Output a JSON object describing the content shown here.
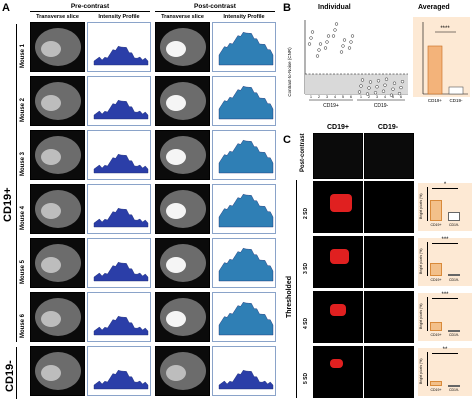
{
  "panelA": {
    "letter": "A",
    "pre_contrast": "Pre-contrast",
    "post_contrast": "Post-contrast",
    "transverse_slice": "Transverse slice",
    "intensity_profile": "Intensity Profile",
    "rows": [
      "Mouse 1",
      "Mouse 2",
      "Mouse 3",
      "Mouse 4",
      "Mouse 5",
      "Mouse 6"
    ],
    "group_cd19pos": "CD19+",
    "group_cd19neg": "CD19-"
  },
  "panelB": {
    "letter": "B",
    "individual_title": "Individual",
    "averaged_title": "Averaged",
    "ylabel": "Contrast-to-Noise (CNR)",
    "cd19pos": "CD19+",
    "cd19neg": "CD19-",
    "avg_cat1": "CD19+",
    "avg_cat2": "CD19-",
    "significance": "****",
    "mouse_ticks": [
      "1",
      "2",
      "3",
      "4",
      "5",
      "6"
    ]
  },
  "panelC": {
    "letter": "C",
    "col1": "CD19+",
    "col2": "CD19-",
    "post_contrast": "Post-contrast",
    "thresholded": "Thresholded",
    "sd_rows": [
      "2 SD",
      "3 SD",
      "4 SD",
      "5 SD"
    ],
    "sig": [
      "*",
      "***",
      "***",
      "**"
    ],
    "bar_cat1": "CD19+",
    "bar_cat2": "CD19-",
    "bar_ylabel": "Bright pixels (%)"
  },
  "chart_data": {
    "type": "scatter",
    "title": "Individual",
    "ylabel": "Contrast-to-Noise (CNR)",
    "x": [
      "1",
      "2",
      "3",
      "4",
      "5",
      "6"
    ],
    "series": [
      {
        "name": "CD19+",
        "values": [
          14,
          11,
          13,
          16,
          12,
          13
        ]
      },
      {
        "name": "CD19-",
        "values": [
          2,
          1.5,
          1.8,
          2.2,
          1.2,
          1.6
        ]
      }
    ],
    "averaged": {
      "categories": [
        "CD19+",
        "CD19-"
      ],
      "values": [
        13,
        2
      ],
      "significance": "****"
    },
    "thresholded_bars": {
      "categories": [
        "CD19+",
        "CD19-"
      ],
      "rows": [
        {
          "label": "2 SD",
          "values": [
            20,
            8
          ],
          "sig": "*"
        },
        {
          "label": "3 SD",
          "values": [
            12,
            2
          ],
          "sig": "***"
        },
        {
          "label": "4 SD",
          "values": [
            8,
            1
          ],
          "sig": "***"
        },
        {
          "label": "5 SD",
          "values": [
            5,
            0.5
          ],
          "sig": "**"
        }
      ]
    }
  }
}
